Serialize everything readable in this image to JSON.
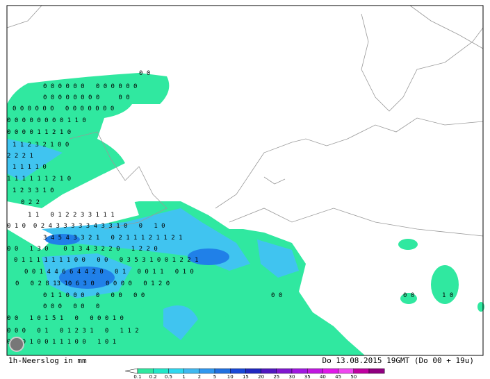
{
  "caption": {
    "left": "1h-Neerslog in mm",
    "right": "Do 13.08.2015 19GMT (Do 00 + 19u)"
  },
  "legend": {
    "labels": [
      "0.1",
      "0.2",
      "0.5",
      "1",
      "2",
      "5",
      "10",
      "15",
      "20",
      "25",
      "30",
      "35",
      "40",
      "45",
      "50"
    ]
  },
  "grid_values": [
    "0 0",
    "0 0 0 0 0 0   0 0 0 0 0 0",
    "0 0 0 0 0 0 0 0     0 0",
    "0 0 0 0 0 0   0 0 0 0 0 0 0",
    "0 0 0 0 0 0 0 0 1 1 0",
    "0 0 0 0 1 1 2 1 0",
    "1 1 2 3 2 1 0 0",
    "2 2 2 1",
    "1 1 1 1 0",
    "1 1 1 1 1 1 2 1 0",
    "1 2 3 3 1 0",
    "0 2 2",
    "1 1   0 1 2 2 3 3 1 1 1",
    "0 1 0  0 2 4 3 3 3 3 3 4 3 3 1 0   0   1 0",
    "3 4 5 4 3 3 2 1   0 2 1 1 1 2 1 1 2 1",
    "0 0   1 3 0    0 1 3 4 3 2 2 0   1 2 2 0",
    "0 1 1 1 1 1 1 1 0 0   0 0   0 3 5 3 1 0 0 1 2 2 1",
    "0 0 1 4 4 6 6 4 4 2 0   0 1   0 0 1 1   0 1 0",
    "0   0 2 8 13 10 6 3 0   0 0 0 0   0 1 2 0",
    "0 1 1 0 0 0   0   0 0   0 0",
    "0 0 0   0 0   0",
    "0 0   1 0 1 5 1   0   0 0 0 1 0",
    "0 0 0   0 1   0 1 2 3 1   0   1 1 2",
    "0   0 1 0 0 1 1 1 0 0   1 0 1",
    "0 0",
    "1 0",
    "0 0"
  ]
}
